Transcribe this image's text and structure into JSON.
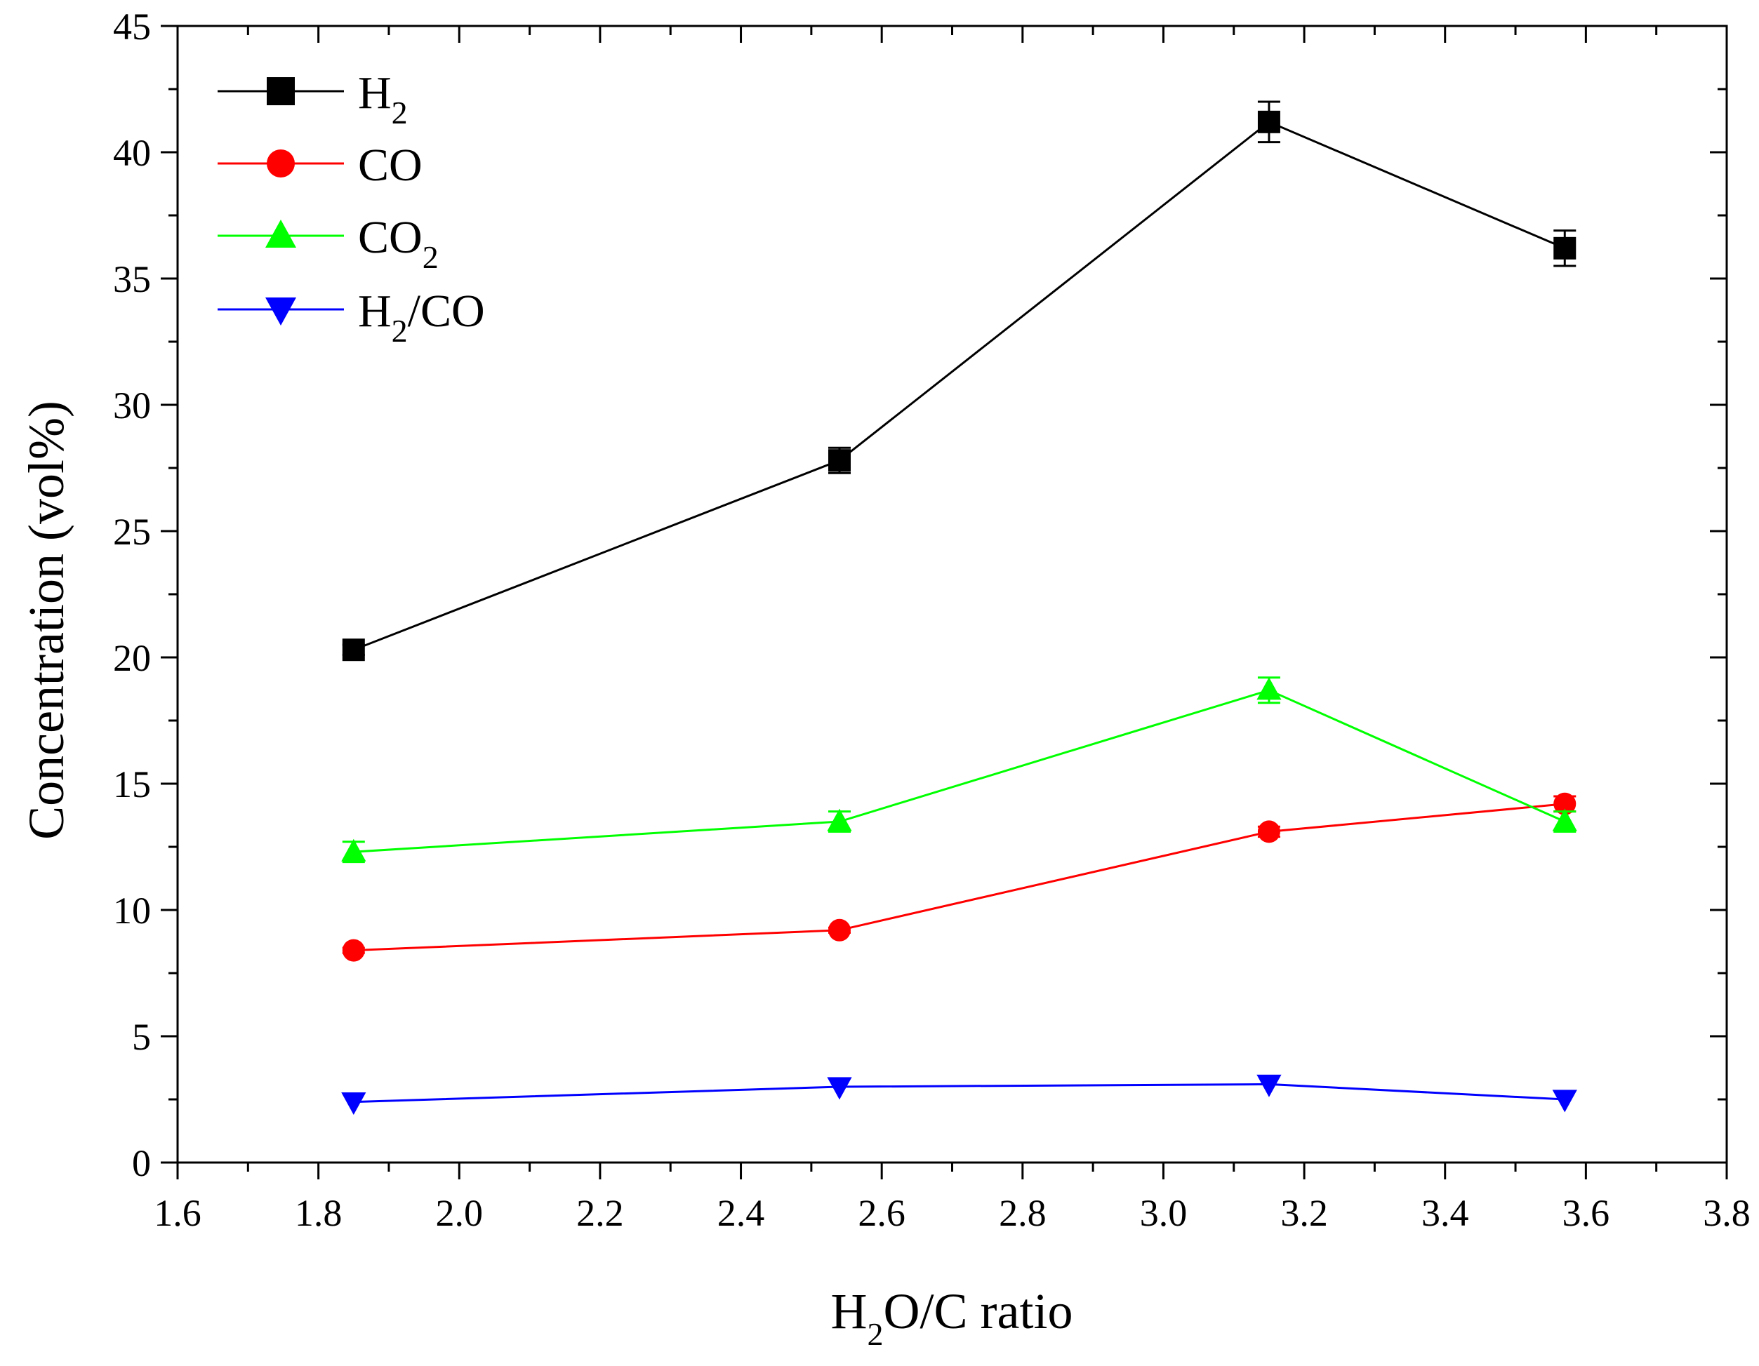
{
  "chart_data": {
    "type": "line",
    "title": "",
    "xlabel": {
      "parts": [
        [
          "H",
          ""
        ],
        [
          "2",
          "sub"
        ],
        [
          "O/C ratio",
          ""
        ]
      ]
    },
    "ylabel": "Concentration (vol%)",
    "xlim": [
      1.6,
      3.8
    ],
    "ylim": [
      0,
      45
    ],
    "x_ticks": [
      1.6,
      1.8,
      2.0,
      2.2,
      2.4,
      2.6,
      2.8,
      3.0,
      3.2,
      3.4,
      3.6,
      3.8
    ],
    "x_tick_labels": [
      "1.6",
      "1.8",
      "2.0",
      "2.2",
      "2.4",
      "2.6",
      "2.8",
      "3.0",
      "3.2",
      "3.4",
      "3.6",
      "3.8"
    ],
    "y_ticks": [
      0,
      5,
      10,
      15,
      20,
      25,
      30,
      35,
      40,
      45
    ],
    "y_tick_labels": [
      "0",
      "5",
      "10",
      "15",
      "20",
      "25",
      "30",
      "35",
      "40",
      "45"
    ],
    "grid": false,
    "legend_position": "top-left",
    "x": [
      1.85,
      2.54,
      3.15,
      3.57
    ],
    "series": [
      {
        "name": "H2",
        "label_parts": [
          [
            "H",
            ""
          ],
          [
            "2",
            "sub"
          ]
        ],
        "color": "#000000",
        "marker": "square",
        "values": [
          20.3,
          27.8,
          41.2,
          36.2
        ],
        "errors": [
          0.2,
          0.5,
          0.8,
          0.7
        ]
      },
      {
        "name": "CO",
        "label_parts": [
          [
            "CO",
            ""
          ]
        ],
        "color": "#ff0000",
        "marker": "circle",
        "values": [
          8.4,
          9.2,
          13.1,
          14.2
        ],
        "errors": [
          0.1,
          0.1,
          0.2,
          0.3
        ]
      },
      {
        "name": "CO2",
        "label_parts": [
          [
            "CO",
            ""
          ],
          [
            "2",
            "sub"
          ]
        ],
        "color": "#00ff00",
        "marker": "triangle-up",
        "values": [
          12.3,
          13.5,
          18.7,
          13.5
        ],
        "errors": [
          0.4,
          0.4,
          0.5,
          0.4
        ]
      },
      {
        "name": "H2/CO",
        "label_parts": [
          [
            "H",
            ""
          ],
          [
            "2",
            "sub"
          ],
          [
            "/CO",
            ""
          ]
        ],
        "color": "#0000ff",
        "marker": "triangle-down",
        "values": [
          2.4,
          3.0,
          3.1,
          2.5
        ],
        "errors": [
          0,
          0,
          0,
          0
        ]
      }
    ]
  }
}
